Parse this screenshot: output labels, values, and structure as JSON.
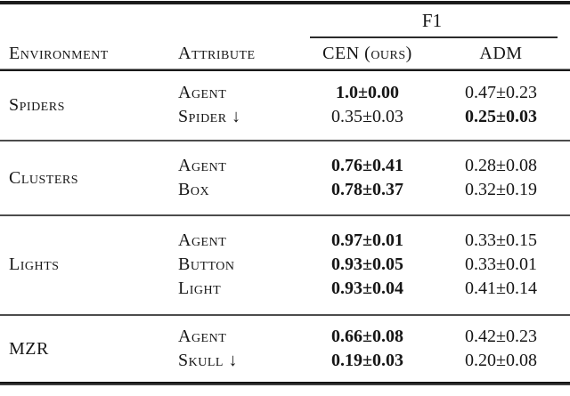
{
  "table": {
    "span_header": "F1",
    "columns": {
      "environment": "Environment",
      "attribute": "Attribute",
      "cen": "CEN (ours)",
      "adm": "ADM"
    },
    "groups": [
      {
        "environment": "Spiders",
        "rows": [
          {
            "attribute": "Agent",
            "cen": {
              "text": "1.0±0.00",
              "bold": true
            },
            "adm": {
              "text": "0.47±0.23",
              "bold": false
            }
          },
          {
            "attribute": "Spider ↓",
            "cen": {
              "text": "0.35±0.03",
              "bold": false
            },
            "adm": {
              "text": "0.25±0.03",
              "bold": true
            }
          }
        ]
      },
      {
        "environment": "Clusters",
        "rows": [
          {
            "attribute": "Agent",
            "cen": {
              "text": "0.76±0.41",
              "bold": true
            },
            "adm": {
              "text": "0.28±0.08",
              "bold": false
            }
          },
          {
            "attribute": "Box",
            "cen": {
              "text": "0.78±0.37",
              "bold": true
            },
            "adm": {
              "text": "0.32±0.19",
              "bold": false
            }
          }
        ]
      },
      {
        "environment": "Lights",
        "rows": [
          {
            "attribute": "Agent",
            "cen": {
              "text": "0.97±0.01",
              "bold": true
            },
            "adm": {
              "text": "0.33±0.15",
              "bold": false
            }
          },
          {
            "attribute": "Button",
            "cen": {
              "text": "0.93±0.05",
              "bold": true
            },
            "adm": {
              "text": "0.33±0.01",
              "bold": false
            }
          },
          {
            "attribute": "Light",
            "cen": {
              "text": "0.93±0.04",
              "bold": true
            },
            "adm": {
              "text": "0.41±0.14",
              "bold": false
            }
          }
        ]
      },
      {
        "environment": "MZR",
        "rows": [
          {
            "attribute": "Agent",
            "cen": {
              "text": "0.66±0.08",
              "bold": true
            },
            "adm": {
              "text": "0.42±0.23",
              "bold": false
            }
          },
          {
            "attribute": "Skull ↓",
            "cen": {
              "text": "0.19±0.03",
              "bold": true
            },
            "adm": {
              "text": "0.20±0.08",
              "bold": false
            }
          }
        ]
      }
    ]
  }
}
